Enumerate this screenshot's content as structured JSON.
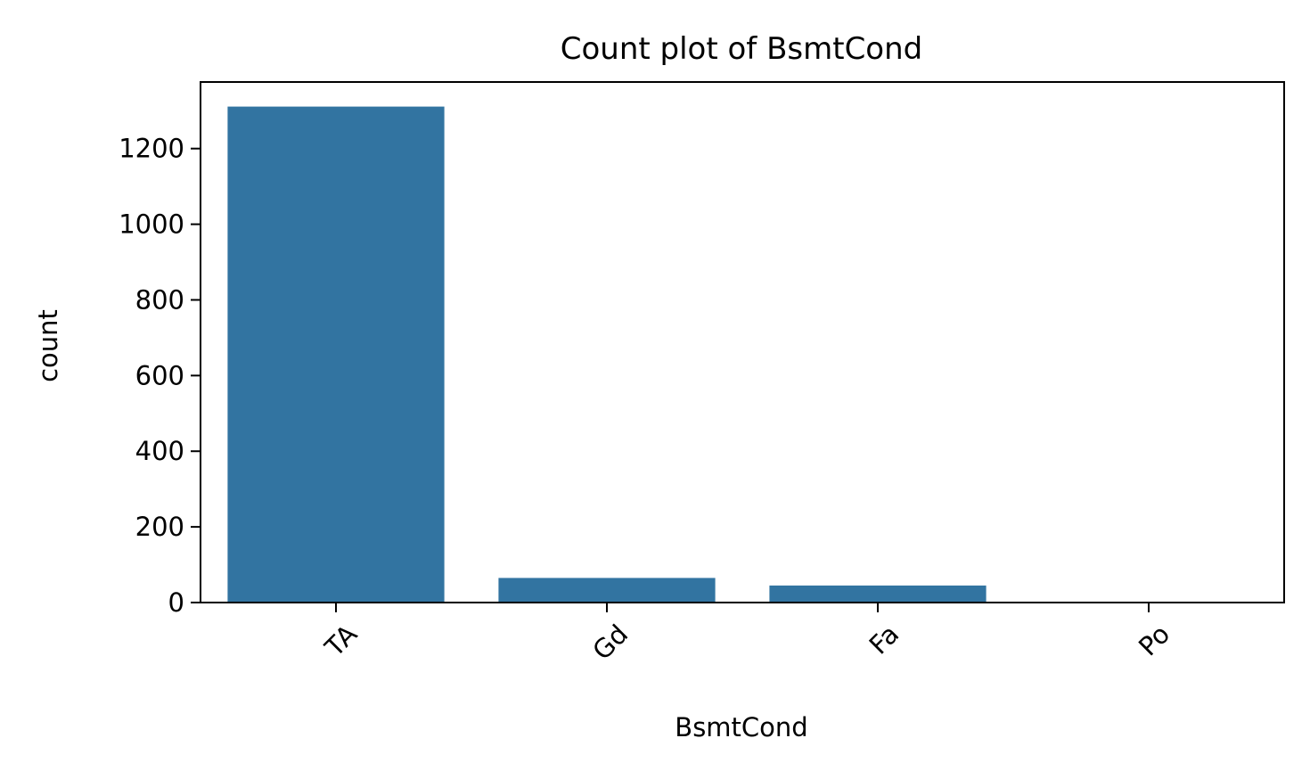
{
  "chart_data": {
    "type": "bar",
    "title": "Count plot of BsmtCond",
    "xlabel": "BsmtCond",
    "ylabel": "count",
    "categories": [
      "TA",
      "Gd",
      "Fa",
      "Po"
    ],
    "values": [
      1311,
      65,
      45,
      2
    ],
    "ylim": [
      0,
      1376
    ],
    "yticks": [
      0,
      200,
      400,
      600,
      800,
      1000,
      1200
    ],
    "grid": false,
    "bar_color": "#3274a1",
    "xtick_rotation": 45
  }
}
